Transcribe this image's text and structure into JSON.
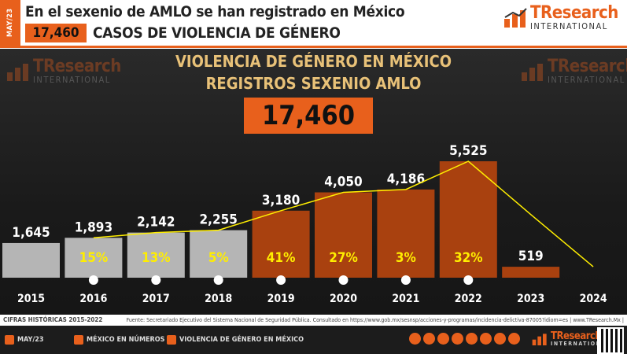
{
  "header": {
    "side_label": "MAY/23",
    "line1": "En el sexenio de AMLO se han registrado en México",
    "badge": "17,460",
    "line2": "CASOS DE VIOLENCIA DE GÉNERO"
  },
  "logo": {
    "brand": "TResearch",
    "sub": "INTERNATIONAL"
  },
  "chart_data": {
    "type": "bar",
    "title": "VIOLENCIA DE GÉNERO EN MÉXICO",
    "subtitle": "REGISTROS SEXENIO AMLO",
    "total_label": "17,460",
    "categories": [
      "2015",
      "2016",
      "2017",
      "2018",
      "2019",
      "2020",
      "2021",
      "2022",
      "2023",
      "2024"
    ],
    "values": [
      1645,
      1893,
      2142,
      2255,
      3180,
      4050,
      4186,
      5525,
      519,
      null
    ],
    "value_labels": [
      "1,645",
      "1,893",
      "2,142",
      "2,255",
      "3,180",
      "4,050",
      "4,186",
      "5,525",
      "519",
      ""
    ],
    "growth_labels": [
      "",
      "15%",
      "13%",
      "5%",
      "41%",
      "27%",
      "3%",
      "32%",
      "",
      ""
    ],
    "trend_line": [
      null,
      1893,
      2142,
      2255,
      3180,
      4050,
      4186,
      5525,
      3000,
      519
    ],
    "bar_colors": {
      "previous": "#b5b5b5",
      "amlo": "#a9410f"
    },
    "trend_color": "#ffee00",
    "growth_color": "#ffee00"
  },
  "footer": {
    "left": "CIFRAS HISTÓRICAS 2015-2022",
    "source": "Fuente: Secretariado Ejecutivo del Sistema Nacional de Seguridad Pública. Consultado en https://www.gob.mx/sesnsp/acciones-y-programas/incidencia-delictiva-87005?idiom=es | www.TResearch.Mx |"
  },
  "bottom_bar": {
    "date": "MAY/23",
    "section": "MÉXICO EN NÚMEROS",
    "topic": "VIOLENCIA DE GÉNERO EN MÉXICO"
  }
}
